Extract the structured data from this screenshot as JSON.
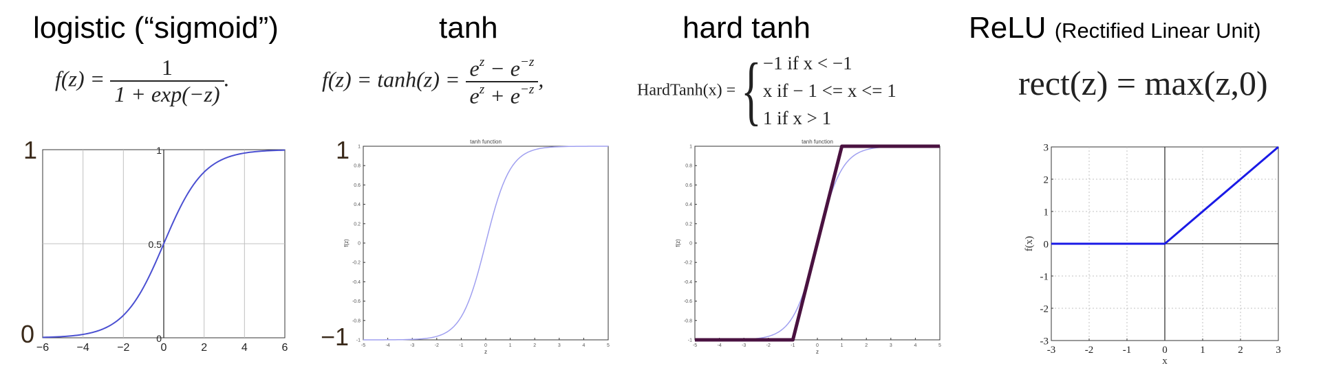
{
  "titles": {
    "logistic": "logistic (“sigmoid”)",
    "tanh": "tanh",
    "hardtanh": "hard tanh",
    "relu": "ReLU",
    "relu_sub": "(Rectified Linear Unit)"
  },
  "formulas": {
    "logistic": {
      "lhs": "f(z) = ",
      "num": "1",
      "den": "1 + exp(−z)",
      "end": "."
    },
    "tanh": {
      "lhs": "f(z) = tanh(z) = ",
      "num_a": "e",
      "num_a_sup": "z",
      "num_op": " − e",
      "num_b_sup": "−z",
      "den_a": "e",
      "den_a_sup": "z",
      "den_op": " + e",
      "den_b_sup": "−z",
      "end": ","
    },
    "hardtanh": {
      "lhs": "HardTanh(x) = ",
      "brace": "{",
      "case1": "−1   if x < −1",
      "case2": "x   if − 1 <= x <= 1",
      "case3": "1   if x > 1"
    },
    "relu": {
      "text": "rect(z) = max(z,0)"
    }
  },
  "big_labels": {
    "logistic_top": "1",
    "logistic_bottom": "0",
    "tanh_top": "1",
    "tanh_bottom": "−1"
  },
  "colors": {
    "curve": "#4a4fd1",
    "light_curve": "#9f9ff0",
    "hard": "#4a1240",
    "relu": "#1a1ae6",
    "grid": "#c0c0c0"
  },
  "chart_data": [
    {
      "type": "line",
      "id": "logistic",
      "title": "",
      "xlabel": "",
      "ylabel": "",
      "xlim": [
        -6,
        6
      ],
      "ylim": [
        0,
        1
      ],
      "x_ticks": [
        -6,
        -4,
        -2,
        0,
        2,
        4,
        6
      ],
      "x_tick_labels": [
        "−6",
        "−4",
        "−2",
        "0",
        "2",
        "4",
        "6"
      ],
      "y_ticks": [
        0,
        0.5,
        1
      ],
      "y_tick_labels": [
        "0",
        "0.5",
        "1"
      ],
      "grid": true,
      "series": [
        {
          "name": "sigmoid",
          "function": "1/(1+exp(-x))",
          "x_range": [
            -6,
            6
          ],
          "samples": 121
        }
      ]
    },
    {
      "type": "line",
      "id": "tanh",
      "title": "tanh function",
      "xlabel": "z",
      "ylabel": "f(z)",
      "xlim": [
        -5,
        5
      ],
      "ylim": [
        -1,
        1
      ],
      "x_ticks": [
        -5,
        -4,
        -3,
        -2,
        -1,
        0,
        1,
        2,
        3,
        4,
        5
      ],
      "x_tick_labels": [
        "-5",
        "-4",
        "-3",
        "-2",
        "-1",
        "0",
        "1",
        "2",
        "3",
        "4",
        "5"
      ],
      "y_ticks": [
        -1,
        -0.8,
        -0.6,
        -0.4,
        -0.2,
        0,
        0.2,
        0.4,
        0.6,
        0.8,
        1
      ],
      "y_tick_labels": [
        "-1",
        "-0.8",
        "-0.6",
        "-0.4",
        "-0.2",
        "0",
        "0.2",
        "0.4",
        "0.6",
        "0.8",
        "1"
      ],
      "grid": false,
      "series": [
        {
          "name": "tanh",
          "function": "tanh(x)",
          "x_range": [
            -5,
            5
          ],
          "samples": 101
        }
      ]
    },
    {
      "type": "line",
      "id": "hardtanh",
      "title": "tanh function",
      "xlabel": "z",
      "ylabel": "f(z)",
      "xlim": [
        -5,
        5
      ],
      "ylim": [
        -1,
        1
      ],
      "x_ticks": [
        -5,
        -4,
        -3,
        -2,
        -1,
        0,
        1,
        2,
        3,
        4,
        5
      ],
      "x_tick_labels": [
        "-5",
        "-4",
        "-3",
        "-2",
        "-1",
        "0",
        "1",
        "2",
        "3",
        "4",
        "5"
      ],
      "y_ticks": [
        -1,
        -0.8,
        -0.6,
        -0.4,
        -0.2,
        0,
        0.2,
        0.4,
        0.6,
        0.8,
        1
      ],
      "y_tick_labels": [
        "-1",
        "-0.8",
        "-0.6",
        "-0.4",
        "-0.2",
        "0",
        "0.2",
        "0.4",
        "0.6",
        "0.8",
        "1"
      ],
      "grid": false,
      "series": [
        {
          "name": "tanh",
          "function": "tanh(x)",
          "x_range": [
            -5,
            5
          ],
          "samples": 101
        },
        {
          "name": "hard tanh",
          "points": [
            [
              -5,
              -1
            ],
            [
              -1,
              -1
            ],
            [
              1,
              1
            ],
            [
              5,
              1
            ]
          ]
        }
      ]
    },
    {
      "type": "line",
      "id": "relu",
      "title": "",
      "xlabel": "x",
      "ylabel": "f(x)",
      "xlim": [
        -3,
        3
      ],
      "ylim": [
        -3,
        3
      ],
      "x_ticks": [
        -3,
        -2,
        -1,
        0,
        1,
        2,
        3
      ],
      "x_tick_labels": [
        "-3",
        "-2",
        "-1",
        "0",
        "1",
        "2",
        "3"
      ],
      "y_ticks": [
        -3,
        -2,
        -1,
        0,
        1,
        2,
        3
      ],
      "y_tick_labels": [
        "-3",
        "-2",
        "-1",
        "0",
        "1",
        "2",
        "3"
      ],
      "grid": true,
      "series": [
        {
          "name": "relu",
          "points": [
            [
              -3,
              0
            ],
            [
              0,
              0
            ],
            [
              3,
              3
            ]
          ]
        }
      ]
    }
  ]
}
